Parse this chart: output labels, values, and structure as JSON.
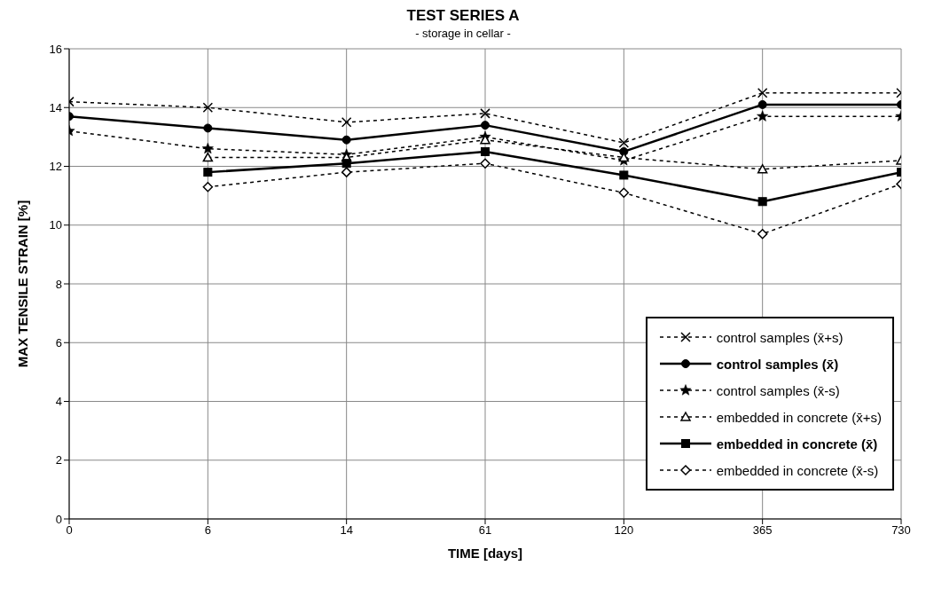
{
  "chart_data": {
    "type": "line",
    "title": "TEST SERIES A",
    "subtitle": "- storage in cellar -",
    "xlabel": "TIME [days]",
    "ylabel": "MAX TENSILE STRAIN [%]",
    "categories": [
      "0",
      "6",
      "14",
      "61",
      "120",
      "365",
      "730"
    ],
    "series": [
      {
        "name": "control samples (x̄+s)",
        "color": "#000000",
        "marker": "cross",
        "line_style": "dashed",
        "values": [
          14.2,
          14.0,
          13.5,
          13.8,
          12.8,
          14.5,
          14.5
        ]
      },
      {
        "name": "control samples (x̄)",
        "color": "#000000",
        "marker": "circle",
        "line_style": "solid",
        "values": [
          13.7,
          13.3,
          12.9,
          13.4,
          12.5,
          14.1,
          14.1
        ]
      },
      {
        "name": "control samples (x̄-s)",
        "color": "#000000",
        "marker": "star",
        "line_style": "dashed",
        "values": [
          13.2,
          12.6,
          12.4,
          13.0,
          12.2,
          13.7,
          13.7
        ]
      },
      {
        "name": "embedded in concrete (x̄+s)",
        "color": "#000000",
        "marker": "triangle",
        "line_style": "dashed",
        "values": [
          null,
          12.3,
          12.3,
          12.9,
          12.3,
          11.9,
          12.2
        ]
      },
      {
        "name": "embedded in concrete (x̄)",
        "color": "#000000",
        "marker": "square",
        "line_style": "solid",
        "values": [
          null,
          11.8,
          12.1,
          12.5,
          11.7,
          10.8,
          11.8
        ]
      },
      {
        "name": "embedded in concrete (x̄-s)",
        "color": "#000000",
        "marker": "diamond",
        "line_style": "dashed",
        "values": [
          null,
          11.3,
          11.8,
          12.1,
          11.1,
          9.7,
          11.4
        ]
      }
    ],
    "ylim": [
      0,
      16
    ],
    "yticks": [
      0,
      2,
      4,
      6,
      8,
      10,
      12,
      14,
      16
    ],
    "grid": true,
    "legend": "bottom right"
  }
}
